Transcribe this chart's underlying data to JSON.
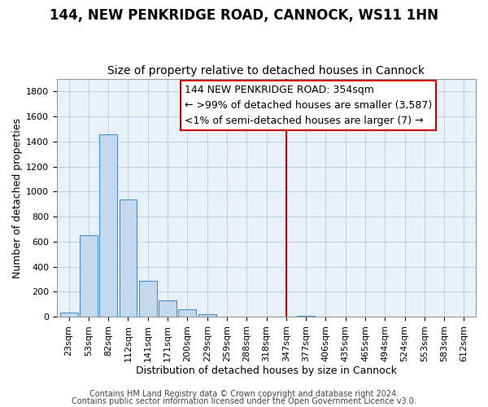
{
  "title": "144, NEW PENKRIDGE ROAD, CANNOCK, WS11 1HN",
  "subtitle": "Size of property relative to detached houses in Cannock",
  "xlabel": "Distribution of detached houses by size in Cannock",
  "ylabel": "Number of detached properties",
  "categories": [
    "23sqm",
    "53sqm",
    "82sqm",
    "112sqm",
    "141sqm",
    "171sqm",
    "200sqm",
    "229sqm",
    "259sqm",
    "288sqm",
    "318sqm",
    "347sqm",
    "377sqm",
    "406sqm",
    "435sqm",
    "465sqm",
    "494sqm",
    "524sqm",
    "553sqm",
    "583sqm",
    "612sqm"
  ],
  "values": [
    35,
    650,
    1460,
    940,
    290,
    130,
    60,
    20,
    0,
    0,
    0,
    0,
    10,
    0,
    0,
    0,
    0,
    0,
    0,
    0,
    0
  ],
  "bar_color": "#c5d9ee",
  "bar_edge_color": "#4a90c4",
  "background_color": "#e8f0f8",
  "grid_color": "#c0cfe0",
  "vline_x": 11,
  "vline_color": "#cc0000",
  "annotation_line1": "144 NEW PENKRIDGE ROAD: 354sqm",
  "annotation_line2": "← >99% of detached houses are smaller (3,587)",
  "annotation_line3": "<1% of semi-detached houses are larger (7) →",
  "ylim": [
    0,
    1900
  ],
  "yticks": [
    0,
    200,
    400,
    600,
    800,
    1000,
    1200,
    1400,
    1600,
    1800
  ],
  "title_fontsize": 12,
  "subtitle_fontsize": 10,
  "axis_label_fontsize": 9,
  "tick_fontsize": 8,
  "annotation_fontsize": 9,
  "footer_fontsize": 7
}
